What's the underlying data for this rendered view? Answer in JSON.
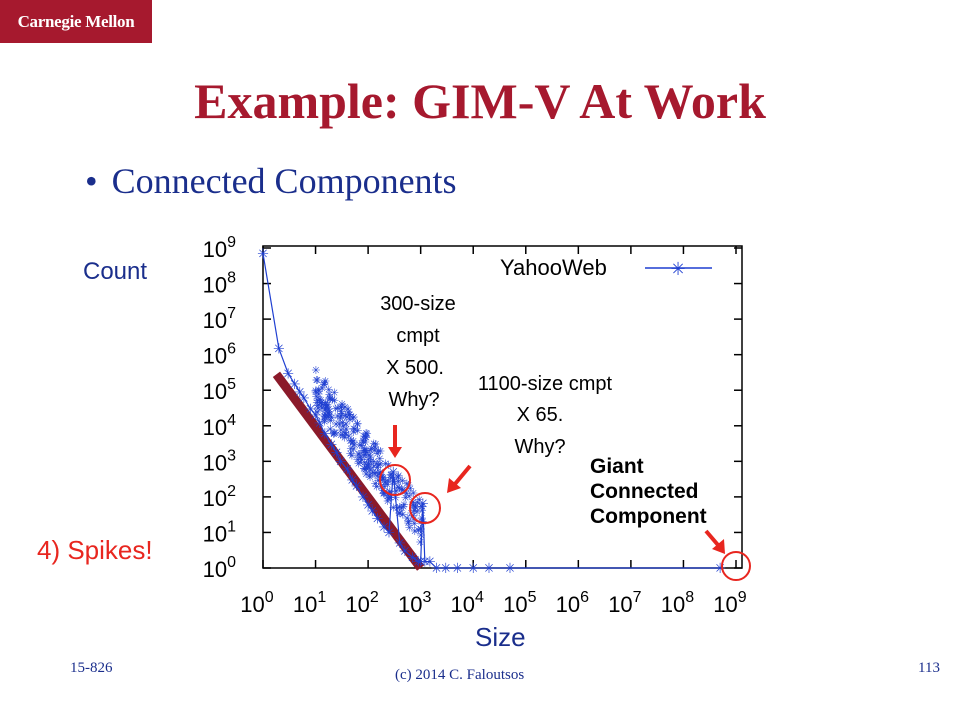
{
  "header": {
    "logo_text": "Carnegie Mellon"
  },
  "slide": {
    "title": "Example: GIM-V At Work",
    "bullet": "Connected Components",
    "count_label": "Count",
    "size_label": "Size",
    "spikes_label": "4) Spikes!"
  },
  "annotations": {
    "a300": [
      "300-size",
      "cmpt",
      "X 500.",
      "Why?"
    ],
    "a1100": [
      "1100-size cmpt",
      "X 65.",
      "Why?"
    ],
    "giant": [
      "Giant",
      "Connected",
      "Component"
    ]
  },
  "footer": {
    "course": "15-826",
    "copyright": "(c) 2014  C. Faloutsos",
    "page": "113"
  },
  "colors": {
    "brand": "#a6192e",
    "bullet": "#1a2e8c",
    "series": "#1f3fd1",
    "annotation": "#e8261f",
    "trend": "#8b1a2a"
  },
  "chart_data": {
    "type": "scatter",
    "xscale": "log",
    "yscale": "log",
    "xlim": [
      1,
      1000000000
    ],
    "ylim": [
      1,
      1000000000
    ],
    "xticks": [
      "10^0",
      "10^1",
      "10^2",
      "10^3",
      "10^4",
      "10^5",
      "10^6",
      "10^7",
      "10^8",
      "10^9"
    ],
    "yticks": [
      "10^0",
      "10^1",
      "10^2",
      "10^3",
      "10^4",
      "10^5",
      "10^6",
      "10^7",
      "10^8",
      "10^9"
    ],
    "legend_position": "top-right",
    "series": [
      {
        "name": "YahooWeb",
        "x": [
          1,
          2,
          3,
          4,
          5,
          6,
          8,
          10,
          12,
          15,
          20,
          25,
          30,
          40,
          50,
          60,
          80,
          100,
          120,
          150,
          200,
          250,
          300,
          400,
          500,
          700,
          900,
          1000,
          1100,
          1200,
          1500,
          2000,
          3000,
          5000,
          10000,
          20000,
          50000,
          500000000
        ],
        "y": [
          700000000,
          1500000,
          300000,
          150000,
          90000,
          60000,
          30000,
          20000,
          12000,
          6000,
          3000,
          1800,
          1000,
          600,
          300,
          200,
          100,
          60,
          40,
          25,
          14,
          10,
          500,
          5,
          3,
          2,
          1.5,
          1.5,
          65,
          1.5,
          1.5,
          1,
          1,
          1,
          1,
          1,
          1,
          1
        ]
      }
    ],
    "trend_line": {
      "x": [
        1.8,
        1000
      ],
      "y": [
        280000,
        1
      ]
    }
  }
}
